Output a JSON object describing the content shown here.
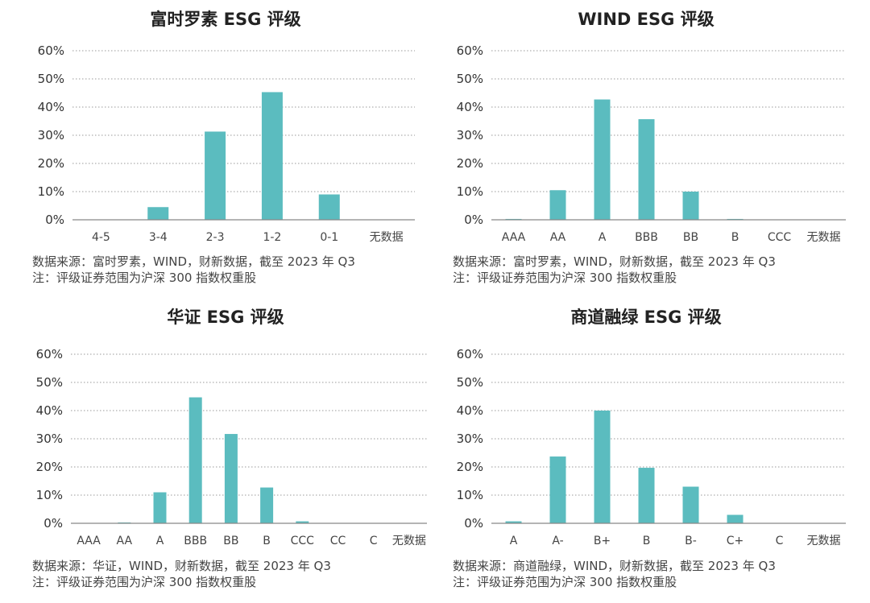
{
  "chart_data": [
    {
      "type": "bar",
      "title": "富时罗素 ESG 评级",
      "categories": [
        "4-5",
        "3-4",
        "2-3",
        "1-2",
        "0-1",
        "无数据"
      ],
      "values": [
        0,
        4.5,
        31.3,
        45.3,
        9,
        0
      ],
      "ylim": [
        0,
        60
      ],
      "yticks": [
        "0%",
        "10%",
        "20%",
        "30%",
        "40%",
        "50%",
        "60%"
      ],
      "source": "数据来源：富时罗素，WIND，财新数据，截至 2023 年 Q3",
      "note": "注：评级证券范围为沪深 300 指数权重股",
      "color": "#5bbcbf"
    },
    {
      "type": "bar",
      "title": "WIND ESG 评级",
      "categories": [
        "AAA",
        "AA",
        "A",
        "BBB",
        "BB",
        "B",
        "CCC",
        "无数据"
      ],
      "values": [
        0.3,
        10.5,
        42.7,
        35.7,
        10,
        0.3,
        0,
        0
      ],
      "ylim": [
        0,
        60
      ],
      "yticks": [
        "0%",
        "10%",
        "20%",
        "30%",
        "40%",
        "50%",
        "60%"
      ],
      "source": "数据来源：富时罗素，WIND，财新数据，截至 2023 年 Q3",
      "note": "注：评级证券范围为沪深 300 指数权重股",
      "color": "#5bbcbf"
    },
    {
      "type": "bar",
      "title": "华证 ESG 评级",
      "categories": [
        "AAA",
        "AA",
        "A",
        "BBB",
        "BB",
        "B",
        "CCC",
        "CC",
        "C",
        "无数据"
      ],
      "values": [
        0,
        0.3,
        11,
        44.7,
        31.7,
        12.7,
        0.7,
        0,
        0,
        0
      ],
      "ylim": [
        0,
        60
      ],
      "yticks": [
        "0%",
        "10%",
        "20%",
        "30%",
        "40%",
        "50%",
        "60%"
      ],
      "source": "数据来源：华证，WIND，财新数据，截至 2023 年 Q3",
      "note": "注：评级证券范围为沪深 300 指数权重股",
      "color": "#5bbcbf"
    },
    {
      "type": "bar",
      "title": "商道融绿 ESG 评级",
      "categories": [
        "A",
        "A-",
        "B+",
        "B",
        "B-",
        "C+",
        "C",
        "无数据"
      ],
      "values": [
        0.7,
        23.7,
        40,
        19.7,
        13,
        3,
        0,
        0
      ],
      "ylim": [
        0,
        60
      ],
      "yticks": [
        "0%",
        "10%",
        "20%",
        "30%",
        "40%",
        "50%",
        "60%"
      ],
      "source": "数据来源：商道融绿，WIND，财新数据，截至 2023 年 Q3",
      "note": "注：评级证券范围为沪深 300 指数权重股",
      "color": "#5bbcbf"
    }
  ]
}
